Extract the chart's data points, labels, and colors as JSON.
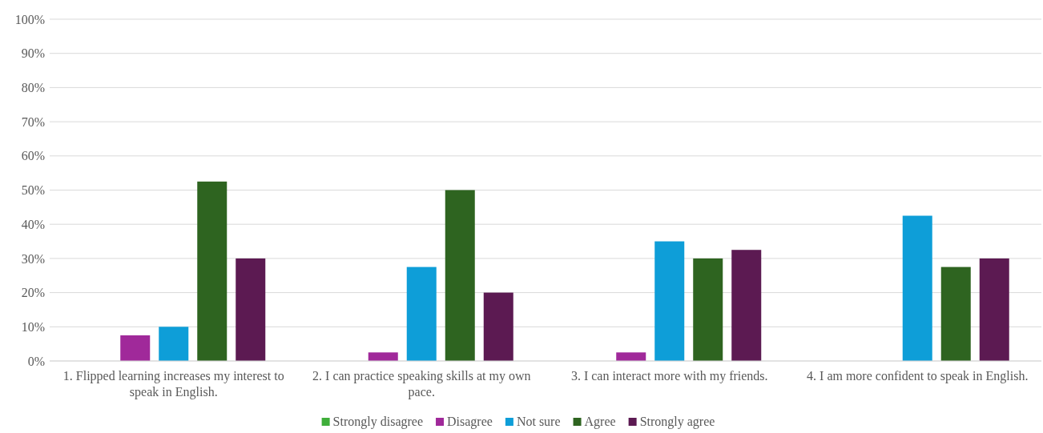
{
  "chart_data": {
    "type": "bar",
    "categories": [
      "1. Flipped learning increases my interest to speak in English.",
      "2. I can practice speaking skills at my own pace.",
      "3. I can interact more with my friends.",
      "4. I am more confident to speak in English."
    ],
    "series": [
      {
        "name": "Strongly disagree",
        "color": "#3fae3a",
        "values": [
          0,
          0,
          0,
          0
        ]
      },
      {
        "name": "Disagree",
        "color": "#a0299a",
        "values": [
          7.5,
          2.5,
          2.5,
          0
        ]
      },
      {
        "name": "Not sure",
        "color": "#0e9ed8",
        "values": [
          10,
          27.5,
          35,
          42.5
        ]
      },
      {
        "name": "Agree",
        "color": "#2e6420",
        "values": [
          52.5,
          50,
          30,
          27.5
        ]
      },
      {
        "name": "Strongly agree",
        "color": "#5c1a52",
        "values": [
          30,
          20,
          32.5,
          30
        ]
      }
    ],
    "ylim": [
      0,
      100
    ],
    "yticks": [
      {
        "value": 0,
        "label": "0%"
      },
      {
        "value": 10,
        "label": "10%"
      },
      {
        "value": 20,
        "label": "20%"
      },
      {
        "value": 30,
        "label": "30%"
      },
      {
        "value": 40,
        "label": "40%"
      },
      {
        "value": 50,
        "label": "50%"
      },
      {
        "value": 60,
        "label": "60%"
      },
      {
        "value": 70,
        "label": "70%"
      },
      {
        "value": 80,
        "label": "80%"
      },
      {
        "value": 90,
        "label": "90%"
      },
      {
        "value": 100,
        "label": "100%"
      }
    ],
    "grid": "y",
    "legend": "bottom"
  }
}
